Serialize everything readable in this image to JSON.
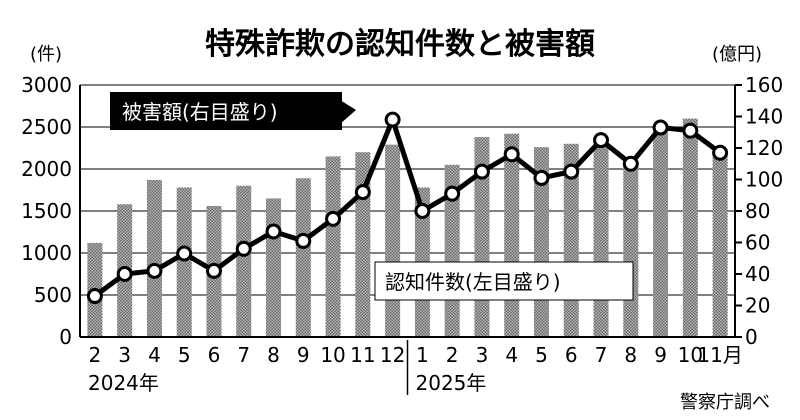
{
  "chart_data": {
    "type": "bar",
    "title": "特殊詐欺の認知件数と被害額",
    "left_unit": "(件)",
    "right_unit": "(億円)",
    "categories": [
      "2",
      "3",
      "4",
      "5",
      "6",
      "7",
      "8",
      "9",
      "10",
      "11",
      "12",
      "1",
      "2",
      "3",
      "4",
      "5",
      "6",
      "7",
      "8",
      "9",
      "10",
      "11"
    ],
    "category_suffix_last": "月",
    "year_groups": [
      {
        "label": "2024年",
        "start": 0,
        "end": 10
      },
      {
        "label": "2025年",
        "start": 11,
        "end": 21
      }
    ],
    "bar_series": {
      "name": "認知件数(左目盛り)",
      "axis": "left",
      "values": [
        1120,
        1580,
        1870,
        1780,
        1560,
        1800,
        1650,
        1890,
        2150,
        2200,
        2290,
        1780,
        2050,
        2380,
        2420,
        2260,
        2300,
        2380,
        2040,
        2450,
        2600,
        2240
      ]
    },
    "line_series": {
      "name": "被害額(右目盛り)",
      "axis": "right",
      "values": [
        26,
        40,
        42,
        53,
        42,
        56,
        67,
        61,
        75,
        92,
        138,
        80,
        91,
        105,
        116,
        101,
        105,
        125,
        110,
        133,
        131,
        117
      ]
    },
    "left_axis": {
      "min": 0,
      "max": 3000,
      "ticks": [
        0,
        500,
        1000,
        1500,
        2000,
        2500,
        3000
      ]
    },
    "right_axis": {
      "min": 0,
      "max": 160,
      "ticks": [
        0,
        20,
        40,
        60,
        80,
        100,
        120,
        140,
        160
      ]
    },
    "source": "警察庁調べ",
    "colors": {
      "bar": "#8c8c8c",
      "line": "#000000",
      "marker_fill": "#ffffff",
      "label_box": "#000000"
    }
  }
}
